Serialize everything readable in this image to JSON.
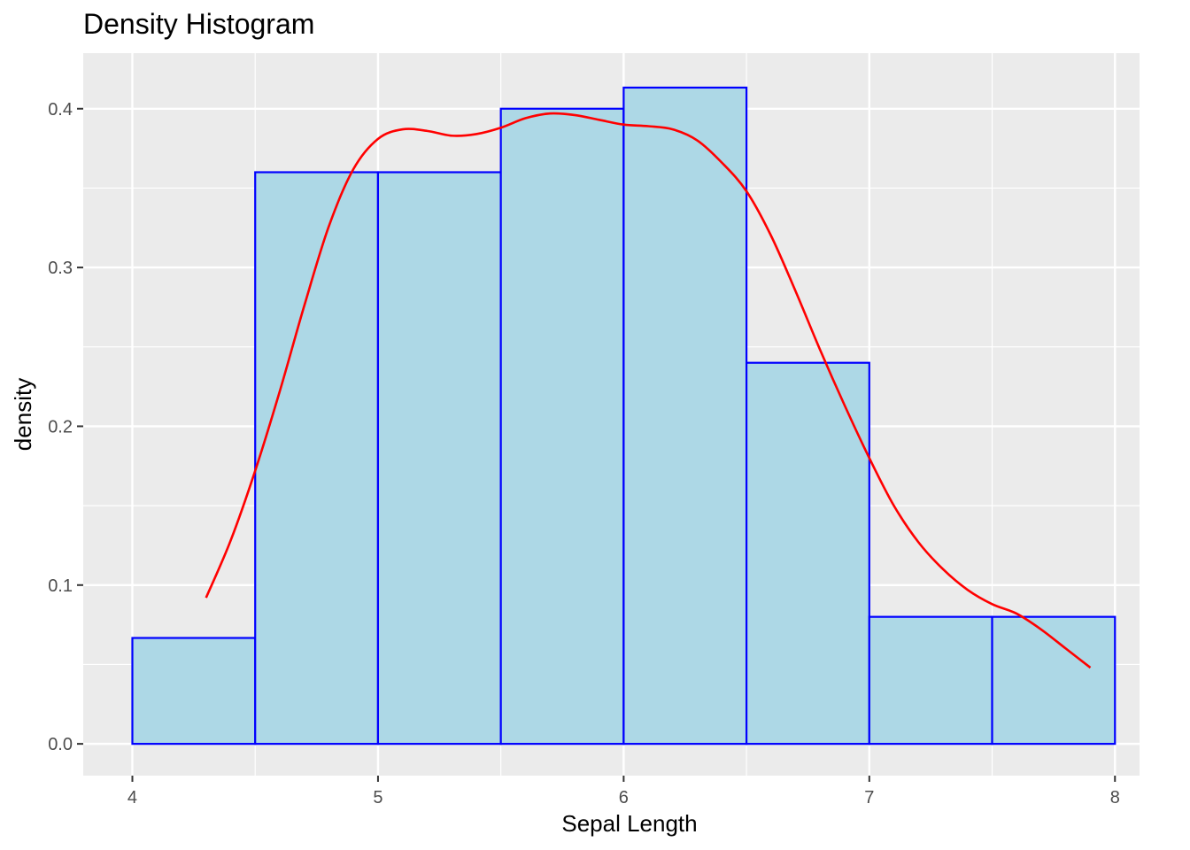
{
  "chart_data": {
    "type": "bar",
    "subtype": "density histogram with density curve overlay",
    "title": "Density Histogram",
    "xlabel": "Sepal Length",
    "ylabel": "density",
    "xlim": [
      3.8,
      8.1
    ],
    "ylim": [
      -0.02,
      0.435
    ],
    "x_ticks": [
      4,
      5,
      6,
      7,
      8
    ],
    "x_tick_labels": [
      "4",
      "5",
      "6",
      "7",
      "8"
    ],
    "y_ticks": [
      0.0,
      0.1,
      0.2,
      0.3,
      0.4
    ],
    "y_tick_labels": [
      "0.0",
      "0.1",
      "0.2",
      "0.3",
      "0.4"
    ],
    "grid": true,
    "legend": "none",
    "bins": [
      {
        "x_start": 4.0,
        "x_end": 4.5,
        "density": 0.0667
      },
      {
        "x_start": 4.5,
        "x_end": 5.0,
        "density": 0.36
      },
      {
        "x_start": 5.0,
        "x_end": 5.5,
        "density": 0.36
      },
      {
        "x_start": 5.5,
        "x_end": 6.0,
        "density": 0.4
      },
      {
        "x_start": 6.0,
        "x_end": 6.5,
        "density": 0.4133
      },
      {
        "x_start": 6.5,
        "x_end": 7.0,
        "density": 0.24
      },
      {
        "x_start": 7.0,
        "x_end": 7.5,
        "density": 0.08
      },
      {
        "x_start": 7.5,
        "x_end": 8.0,
        "density": 0.08
      }
    ],
    "density_curve": {
      "x": [
        4.3,
        4.4,
        4.5,
        4.6,
        4.7,
        4.8,
        4.9,
        5.0,
        5.1,
        5.2,
        5.3,
        5.4,
        5.5,
        5.6,
        5.7,
        5.8,
        5.9,
        6.0,
        6.1,
        6.2,
        6.3,
        6.4,
        6.5,
        6.6,
        6.7,
        6.8,
        6.9,
        7.0,
        7.1,
        7.2,
        7.3,
        7.4,
        7.5,
        7.6,
        7.7,
        7.8,
        7.9
      ],
      "y": [
        0.092,
        0.128,
        0.172,
        0.222,
        0.276,
        0.326,
        0.362,
        0.381,
        0.387,
        0.386,
        0.383,
        0.384,
        0.388,
        0.394,
        0.397,
        0.396,
        0.393,
        0.39,
        0.389,
        0.387,
        0.38,
        0.366,
        0.348,
        0.32,
        0.285,
        0.248,
        0.213,
        0.18,
        0.15,
        0.127,
        0.11,
        0.097,
        0.088,
        0.082,
        0.072,
        0.06,
        0.048
      ]
    },
    "colors": {
      "panel_background": "#ebebeb",
      "grid": "#ffffff",
      "bar_fill": "#add8e6",
      "bar_outline": "#0000ff",
      "curve": "#ff0000",
      "tick_text": "#4d4d4d",
      "tick_mark": "#333333"
    }
  }
}
